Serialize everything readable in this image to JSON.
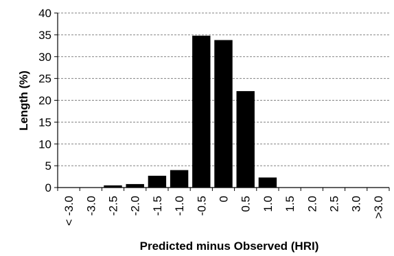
{
  "chart_data": {
    "type": "bar",
    "title": "",
    "xlabel": "Predicted minus Observed (HRI)",
    "ylabel": "Length (%)",
    "ylim": [
      0,
      40
    ],
    "yticks": [
      0,
      5,
      10,
      15,
      20,
      25,
      30,
      35,
      40
    ],
    "grid": "horizontal dashed",
    "legend": "none",
    "bar_color": "#000000",
    "categories": [
      "< -3.0",
      "-3.0",
      "-2.5",
      "-2.0",
      "-1.5",
      "-1.0",
      "-0.5",
      "0",
      "0.5",
      "1.0",
      "1.5",
      "2.0",
      "2.5",
      "3.0",
      ">3.0"
    ],
    "values": [
      0,
      0,
      0.5,
      0.8,
      2.7,
      4.0,
      34.8,
      33.8,
      22.1,
      2.3,
      0,
      0,
      0,
      0,
      0
    ]
  }
}
